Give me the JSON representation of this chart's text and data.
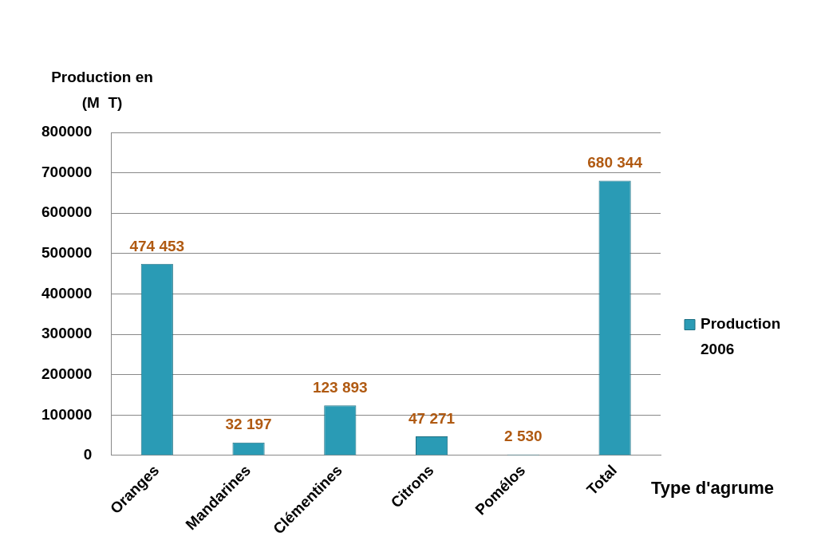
{
  "chart_data": {
    "type": "bar",
    "ylabel": "Production en (M  T)",
    "xlabel": "Type d'agrume",
    "categories": [
      "Oranges",
      "Mandarines",
      "Clémentines",
      "Citrons",
      "Pomélos",
      "Total"
    ],
    "series": [
      {
        "name": "Production 2006",
        "color": "#2a9bb5",
        "values": [
          474453,
          32197,
          123893,
          47271,
          2530,
          680344
        ],
        "value_labels": [
          "474 453",
          "32 197",
          "123 893",
          "47 271",
          "2 530",
          "680 344"
        ]
      }
    ],
    "ylim": [
      0,
      800000
    ],
    "yticks": [
      0,
      100000,
      200000,
      300000,
      400000,
      500000,
      600000,
      700000,
      800000
    ],
    "grid": "y",
    "legend": "right"
  }
}
